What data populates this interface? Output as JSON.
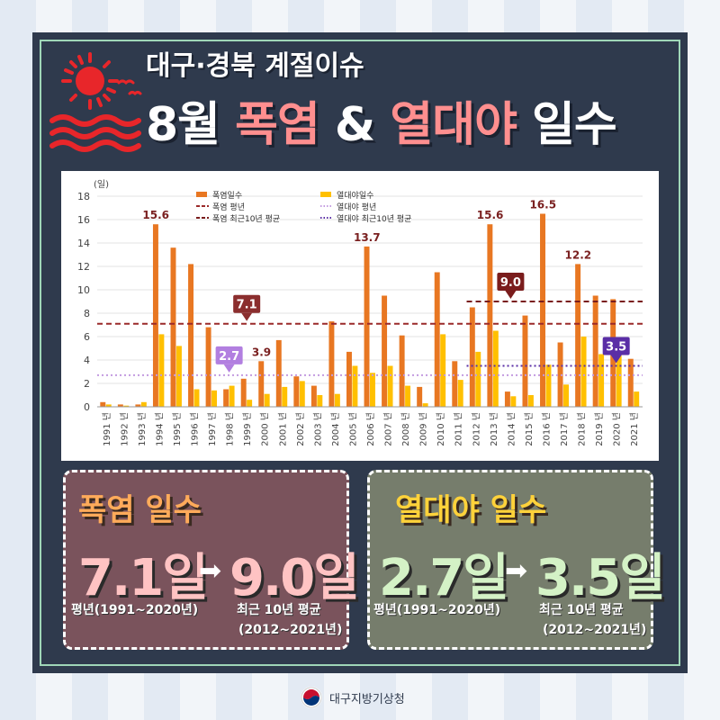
{
  "header": {
    "line1": "대구·경북 계절이슈",
    "line2_a": "8월 ",
    "line2_b": "폭염",
    "line2_c": " & ",
    "line2_d": "열대야",
    "line2_e": " 일수"
  },
  "chart_data": {
    "type": "bar",
    "ylabel": "(일)",
    "ylim": [
      0,
      18
    ],
    "yticks": [
      0,
      2,
      4,
      6,
      8,
      10,
      12,
      14,
      16,
      18
    ],
    "categories": [
      "1991 년",
      "1992 년",
      "1993 년",
      "1994 년",
      "1995 년",
      "1996 년",
      "1997 년",
      "1998 년",
      "1999 년",
      "2000 년",
      "2001 년",
      "2002 년",
      "2003 년",
      "2004 년",
      "2005 년",
      "2006 년",
      "2007 년",
      "2008 년",
      "2009 년",
      "2010 년",
      "2011 년",
      "2012 년",
      "2013 년",
      "2014 년",
      "2015 년",
      "2016 년",
      "2017 년",
      "2018 년",
      "2019 년",
      "2020 년",
      "2021 년"
    ],
    "series": [
      {
        "name": "폭염일수",
        "color": "#e87722",
        "values": [
          0.4,
          0.2,
          0.2,
          15.6,
          13.6,
          12.2,
          6.8,
          1.5,
          2.4,
          3.9,
          5.7,
          2.6,
          1.8,
          7.3,
          4.7,
          13.7,
          9.5,
          6.1,
          1.7,
          11.5,
          3.9,
          8.5,
          15.6,
          1.3,
          7.8,
          16.5,
          5.5,
          12.2,
          9.5,
          9.2,
          4.1
        ]
      },
      {
        "name": "열대야일수",
        "color": "#ffc000",
        "values": [
          0.2,
          0.1,
          0.4,
          6.2,
          5.2,
          1.5,
          1.4,
          1.8,
          0.6,
          1.1,
          1.7,
          2.2,
          1.0,
          1.1,
          3.5,
          2.9,
          3.5,
          1.8,
          0.3,
          6.2,
          2.3,
          4.7,
          6.5,
          0.9,
          1.0,
          3.6,
          1.9,
          6.0,
          4.5,
          4.6,
          1.3
        ]
      }
    ],
    "reference_lines": [
      {
        "name": "폭염 평년",
        "value": 7.1,
        "from": "1991 년",
        "to": "2021 년",
        "color": "#9b2a2a",
        "style": "dashed"
      },
      {
        "name": "열대야 평년",
        "value": 2.7,
        "from": "1991 년",
        "to": "2021 년",
        "color": "#c39be0",
        "style": "dotted"
      },
      {
        "name": "폭염 최근10년 평균",
        "value": 9.0,
        "from": "2012 년",
        "to": "2021 년",
        "color": "#7a1c1c",
        "style": "dashed"
      },
      {
        "name": "열대야 최근10년 평균",
        "value": 3.5,
        "from": "2012 년",
        "to": "2021 년",
        "color": "#5a2ea6",
        "style": "dotted"
      }
    ],
    "data_labels": [
      {
        "category": "1994 년",
        "text": "15.6"
      },
      {
        "category": "2000 년",
        "text": "3.9"
      },
      {
        "category": "2006 년",
        "text": "13.7"
      },
      {
        "category": "2013 년",
        "text": "15.6"
      },
      {
        "category": "2016 년",
        "text": "16.5"
      },
      {
        "category": "2018 년",
        "text": "12.2"
      }
    ],
    "callouts": [
      {
        "text": "7.1",
        "color": "#8b2e2e",
        "category": "1999 년",
        "value": 7.1
      },
      {
        "text": "2.7",
        "color": "#b27fe0",
        "category": "1998 년",
        "value": 2.7
      },
      {
        "text": "9.0",
        "color": "#7a1c1c",
        "category": "2014 년",
        "value": 9.0
      },
      {
        "text": "3.5",
        "color": "#5a2ea6",
        "category": "2020 년",
        "value": 3.5
      }
    ],
    "legend": {
      "placement": "top-left",
      "items": [
        {
          "label": "폭염일수",
          "kind": "bar",
          "color": "#e87722"
        },
        {
          "label": "열대야일수",
          "kind": "bar",
          "color": "#ffc000"
        },
        {
          "label": "폭염 평년",
          "kind": "dashed",
          "color": "#9b2a2a"
        },
        {
          "label": "열대야 평년",
          "kind": "dotted",
          "color": "#c39be0"
        },
        {
          "label": "폭염 최근10년 평균",
          "kind": "dashed",
          "color": "#7a1c1c"
        },
        {
          "label": "열대야 최근10년 평균",
          "kind": "dotted",
          "color": "#5a2ea6"
        }
      ]
    },
    "grid": "horizontal"
  },
  "cards": {
    "heat": {
      "title": "폭염 일수",
      "from_value": "7.1일",
      "to_value": "9.0일",
      "from_label": "평년(1991~2020년)",
      "to_label_1": "최근 10년 평균",
      "to_label_2": "(2012~2021년)"
    },
    "tropical": {
      "title": "열대야 일수",
      "from_value": "2.7일",
      "to_value": "3.5일",
      "from_label": "평년(1991~2020년)",
      "to_label_1": "최근 10년 평균",
      "to_label_2": "(2012~2021년)"
    }
  },
  "footer": {
    "org": "대구지방기상청",
    "logo_icon": "government-emblem-icon"
  },
  "decor": {
    "sun_icon": "sun-icon",
    "arrow_icon": "right-arrow-icon"
  }
}
